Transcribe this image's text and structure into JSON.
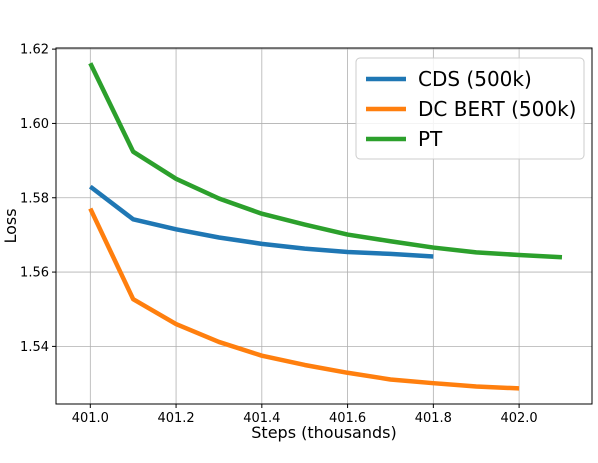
{
  "chart_data": {
    "type": "line",
    "title": "",
    "xlabel": "Steps (thousands)",
    "ylabel": "Loss",
    "xlim": [
      400.92,
      402.17
    ],
    "ylim": [
      1.5245,
      1.6203
    ],
    "x_ticks": [
      401.0,
      401.2,
      401.4,
      401.6,
      401.8,
      402.0
    ],
    "x_tick_labels": [
      "401.0",
      "401.2",
      "401.4",
      "401.6",
      "401.8",
      "402.0"
    ],
    "y_ticks": [
      1.54,
      1.56,
      1.58,
      1.6,
      1.62
    ],
    "y_tick_labels": [
      "1.54",
      "1.56",
      "1.58",
      "1.60",
      "1.62"
    ],
    "grid": true,
    "legend_position": "top-right",
    "series": [
      {
        "name": "CDS (500k)",
        "color": "#1f77b4",
        "x": [
          401.0,
          401.1,
          401.2,
          401.3,
          401.4,
          401.5,
          401.6,
          401.7,
          401.8
        ],
        "y": [
          1.583,
          1.5742,
          1.5715,
          1.5693,
          1.5676,
          1.5663,
          1.5654,
          1.5649,
          1.5642
        ]
      },
      {
        "name": "DC BERT (500k)",
        "color": "#ff7f0e",
        "x": [
          401.0,
          401.1,
          401.2,
          401.3,
          401.4,
          401.5,
          401.6,
          401.7,
          401.8,
          401.9,
          402.0
        ],
        "y": [
          1.5771,
          1.5527,
          1.546,
          1.5412,
          1.5375,
          1.535,
          1.5329,
          1.5311,
          1.5301,
          1.5292,
          1.5287
        ]
      },
      {
        "name": "PT",
        "color": "#2ca02c",
        "x": [
          401.0,
          401.1,
          401.2,
          401.3,
          401.4,
          401.5,
          401.6,
          401.7,
          401.8,
          401.9,
          402.0,
          402.1
        ],
        "y": [
          1.6162,
          1.5924,
          1.5851,
          1.5798,
          1.5757,
          1.5728,
          1.5701,
          1.5683,
          1.5666,
          1.5653,
          1.5646,
          1.564
        ]
      }
    ]
  }
}
